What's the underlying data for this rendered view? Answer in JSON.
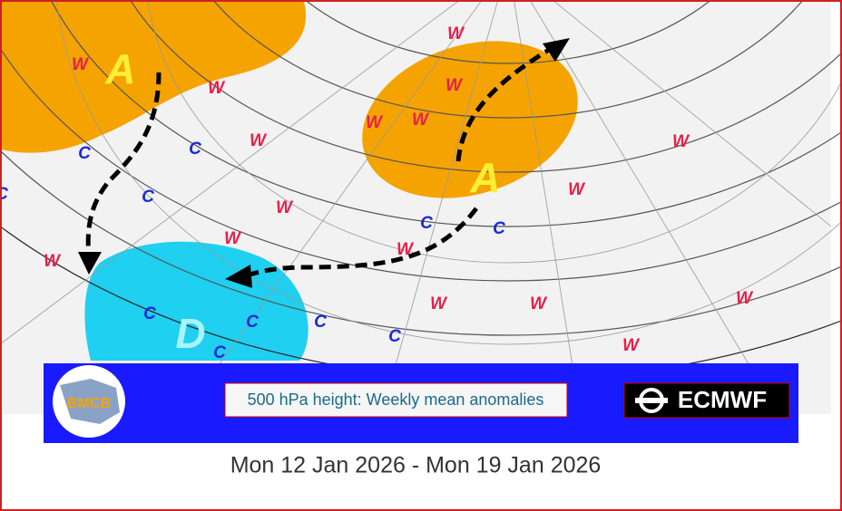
{
  "map": {
    "highs": [
      "A",
      "A"
    ],
    "low": "D",
    "warm": [
      "W",
      "W",
      "W",
      "W",
      "W",
      "W",
      "W",
      "W",
      "W",
      "W",
      "W",
      "W",
      "W",
      "W",
      "W",
      "W",
      "W"
    ],
    "cold": [
      "C",
      "C",
      "C",
      "C",
      "C",
      "C",
      "C",
      "C",
      "C",
      "C",
      "C"
    ]
  },
  "banner": {
    "logo": "BMCB",
    "title": "500 hPa height: Weekly mean anomalies",
    "brand": "ECMWF"
  },
  "date": "Mon 12 Jan 2026 - Mon 19 Jan 2026"
}
